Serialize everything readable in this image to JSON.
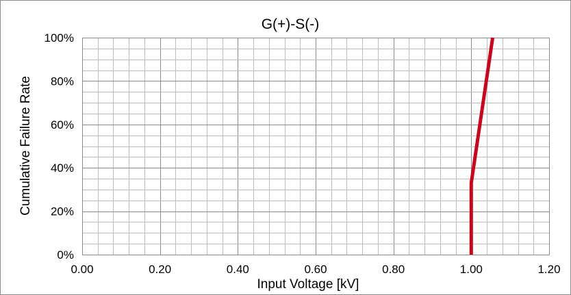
{
  "chart_data": {
    "type": "line",
    "title": "G(+)-S(-)",
    "xlabel": "Input Voltage [kV]",
    "ylabel": "Cumulative Failure Rate",
    "xlim": [
      0,
      1.2
    ],
    "ylim": [
      0,
      100
    ],
    "x_ticks": [
      "0.00",
      "0.20",
      "0.40",
      "0.60",
      "0.80",
      "1.00",
      "1.20"
    ],
    "x_tick_values": [
      0,
      0.2,
      0.4,
      0.6,
      0.8,
      1.0,
      1.2
    ],
    "y_ticks": [
      "0%",
      "20%",
      "40%",
      "60%",
      "80%",
      "100%"
    ],
    "y_tick_values": [
      0,
      20,
      40,
      60,
      80,
      100
    ],
    "x_minor_step": 0.04,
    "y_minor_step": 5,
    "grid": true,
    "legend": "none",
    "series": [
      {
        "color": "#d0021b",
        "x": [
          1.0,
          1.0,
          1.055
        ],
        "y": [
          0,
          33,
          100
        ]
      }
    ]
  }
}
